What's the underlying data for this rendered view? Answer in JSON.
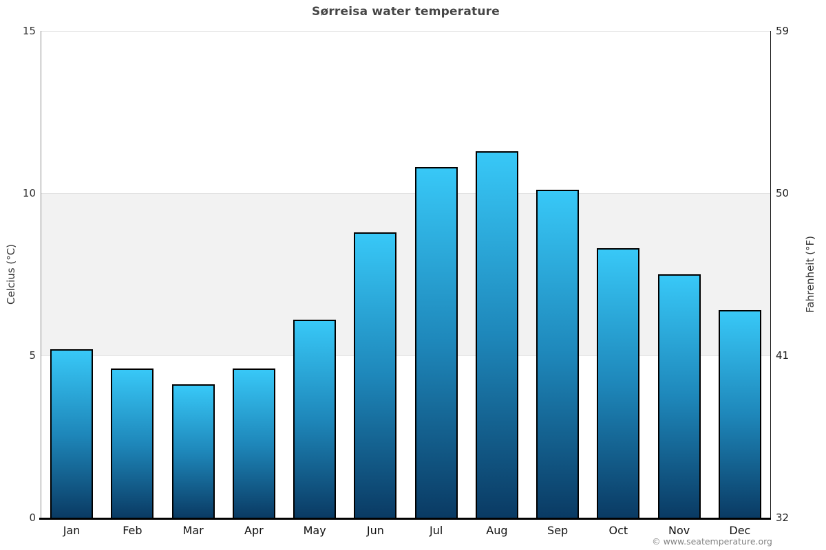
{
  "footer": {
    "copyright": "© www.seatemperature.org"
  },
  "chart_data": {
    "type": "bar",
    "title": "Sørreisa water temperature",
    "categories": [
      "Jan",
      "Feb",
      "Mar",
      "Apr",
      "May",
      "Jun",
      "Jul",
      "Aug",
      "Sep",
      "Oct",
      "Nov",
      "Dec"
    ],
    "values": [
      5.2,
      4.6,
      4.1,
      4.6,
      6.1,
      8.8,
      10.8,
      11.3,
      10.1,
      8.3,
      7.5,
      6.4
    ],
    "unit": "°C",
    "ylabel_left": "Celcius (°C)",
    "ylabel_right": "Fahrenheit (°F)",
    "ylim": [
      0,
      15
    ],
    "yticks": [
      {
        "celsius": "0",
        "fahrenheit": "32"
      },
      {
        "celsius": "5",
        "fahrenheit": "41"
      },
      {
        "celsius": "10",
        "fahrenheit": "50"
      },
      {
        "celsius": "15",
        "fahrenheit": "59"
      }
    ],
    "shaded_band_celsius": [
      5,
      10
    ],
    "grid": "horizontal-bands",
    "legend": "none",
    "colors": {
      "bar_gradient_top": "#38c8f7",
      "bar_gradient_mid": "#1e87ba",
      "bar_gradient_bottom": "#0a3a63",
      "bar_border": "#000000",
      "band": "#f2f2f2",
      "gridline": "#e2e2e2",
      "axis_left": "#8a8a8a",
      "axis_right": "#1a1a1a",
      "axis_bottom": "#000000"
    }
  }
}
